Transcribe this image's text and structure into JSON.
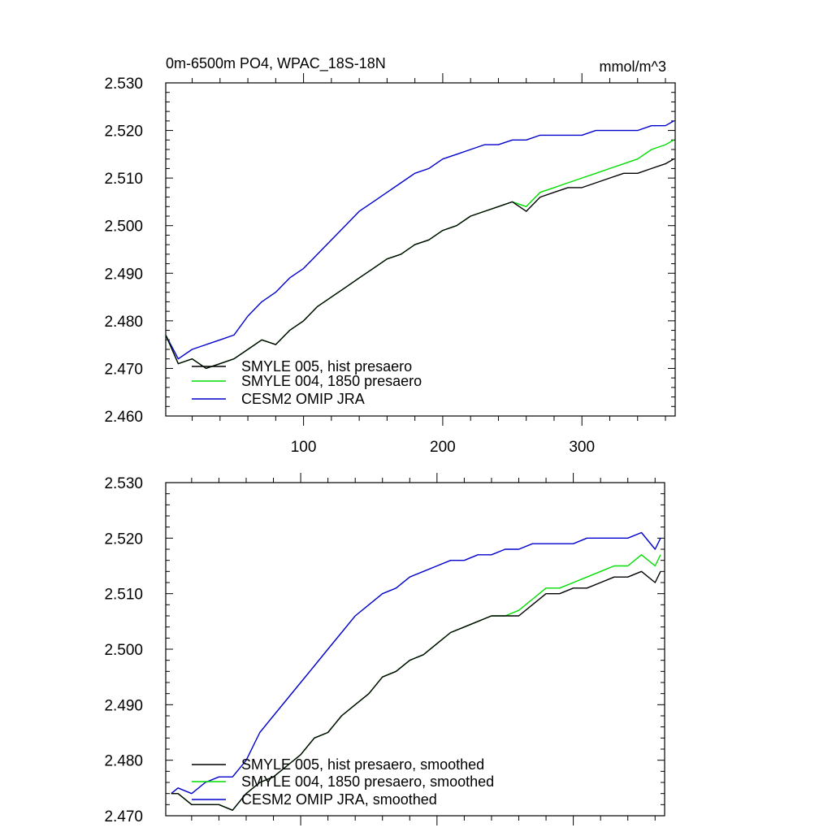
{
  "chart_data": [
    {
      "type": "line",
      "title": "0m-6500m PO4, WPAC_18S-18N",
      "units": "mmol/m^3",
      "xlim": [
        1,
        367
      ],
      "ylim": [
        2.46,
        2.53
      ],
      "yticks": [
        2.46,
        2.47,
        2.48,
        2.49,
        2.5,
        2.51,
        2.52,
        2.53
      ],
      "ytick_labels": [
        "2.460",
        "2.470",
        "2.480",
        "2.490",
        "2.500",
        "2.510",
        "2.520",
        "2.530"
      ],
      "xticks": [
        100,
        200,
        300
      ],
      "xtick_labels": [
        "100",
        "200",
        "300"
      ],
      "legend_position": "bottom-left",
      "series": [
        {
          "name": "SMYLE 005, hist presaero",
          "color": "#000000",
          "x": [
            1,
            10,
            20,
            30,
            40,
            50,
            60,
            70,
            80,
            90,
            100,
            110,
            120,
            130,
            140,
            150,
            160,
            170,
            180,
            190,
            200,
            210,
            220,
            230,
            240,
            250,
            260,
            270,
            280,
            290,
            300,
            310,
            320,
            330,
            340,
            350,
            360,
            366
          ],
          "y": [
            2.477,
            2.471,
            2.472,
            2.47,
            2.471,
            2.472,
            2.474,
            2.476,
            2.475,
            2.478,
            2.48,
            2.483,
            2.485,
            2.487,
            2.489,
            2.491,
            2.493,
            2.494,
            2.496,
            2.497,
            2.499,
            2.5,
            2.502,
            2.503,
            2.504,
            2.505,
            2.503,
            2.506,
            2.507,
            2.508,
            2.508,
            2.509,
            2.51,
            2.511,
            2.511,
            2.512,
            2.513,
            2.514
          ]
        },
        {
          "name": "SMYLE 004, 1850 presaero",
          "color": "#00dd00",
          "x": [
            1,
            10,
            20,
            30,
            40,
            50,
            60,
            70,
            80,
            90,
            100,
            110,
            120,
            130,
            140,
            150,
            160,
            170,
            180,
            190,
            200,
            210,
            220,
            230,
            240,
            250,
            260,
            270,
            280,
            290,
            300,
            310,
            320,
            330,
            340,
            350,
            360,
            366
          ],
          "y": [
            2.477,
            2.471,
            2.472,
            2.47,
            2.471,
            2.472,
            2.474,
            2.476,
            2.475,
            2.478,
            2.48,
            2.483,
            2.485,
            2.487,
            2.489,
            2.491,
            2.493,
            2.494,
            2.496,
            2.497,
            2.499,
            2.5,
            2.502,
            2.503,
            2.504,
            2.505,
            2.504,
            2.507,
            2.508,
            2.509,
            2.51,
            2.511,
            2.512,
            2.513,
            2.514,
            2.516,
            2.517,
            2.518
          ]
        },
        {
          "name": "CESM2 OMIP JRA",
          "color": "#0000cc",
          "x": [
            1,
            10,
            20,
            30,
            40,
            50,
            60,
            70,
            80,
            90,
            100,
            110,
            120,
            130,
            140,
            150,
            160,
            170,
            180,
            190,
            200,
            210,
            220,
            230,
            240,
            250,
            260,
            270,
            280,
            290,
            300,
            310,
            320,
            330,
            340,
            350,
            360,
            366
          ],
          "y": [
            2.477,
            2.472,
            2.474,
            2.475,
            2.476,
            2.477,
            2.481,
            2.484,
            2.486,
            2.489,
            2.491,
            2.494,
            2.497,
            2.5,
            2.503,
            2.505,
            2.507,
            2.509,
            2.511,
            2.512,
            2.514,
            2.515,
            2.516,
            2.517,
            2.517,
            2.518,
            2.518,
            2.519,
            2.519,
            2.519,
            2.519,
            2.52,
            2.52,
            2.52,
            2.52,
            2.521,
            2.521,
            2.522
          ]
        }
      ]
    },
    {
      "type": "line",
      "title": "",
      "units": "",
      "xlim": [
        1,
        367
      ],
      "ylim": [
        2.47,
        2.53
      ],
      "yticks": [
        2.47,
        2.48,
        2.49,
        2.5,
        2.51,
        2.52,
        2.53
      ],
      "ytick_labels": [
        "2.470",
        "2.480",
        "2.490",
        "2.500",
        "2.510",
        "2.520",
        "2.530"
      ],
      "xticks": [
        100,
        200,
        300
      ],
      "xtick_labels": [],
      "legend_position": "bottom-left",
      "series": [
        {
          "name": "SMYLE 005, hist presaero, smoothed",
          "color": "#000000",
          "x": [
            5,
            10,
            20,
            30,
            40,
            50,
            60,
            70,
            80,
            90,
            100,
            110,
            120,
            130,
            140,
            150,
            160,
            170,
            180,
            190,
            200,
            210,
            220,
            230,
            240,
            250,
            260,
            270,
            280,
            290,
            300,
            310,
            320,
            330,
            340,
            350,
            360,
            364
          ],
          "y": [
            2.474,
            2.474,
            2.472,
            2.472,
            2.472,
            2.471,
            2.474,
            2.476,
            2.477,
            2.479,
            2.481,
            2.484,
            2.485,
            2.488,
            2.49,
            2.492,
            2.495,
            2.496,
            2.498,
            2.499,
            2.501,
            2.503,
            2.504,
            2.505,
            2.506,
            2.506,
            2.506,
            2.508,
            2.51,
            2.51,
            2.511,
            2.511,
            2.512,
            2.513,
            2.513,
            2.514,
            2.512,
            2.514
          ]
        },
        {
          "name": "SMYLE 004, 1850 presaero, smoothed",
          "color": "#00dd00",
          "x": [
            5,
            10,
            20,
            30,
            40,
            50,
            60,
            70,
            80,
            90,
            100,
            110,
            120,
            130,
            140,
            150,
            160,
            170,
            180,
            190,
            200,
            210,
            220,
            230,
            240,
            250,
            260,
            270,
            280,
            290,
            300,
            310,
            320,
            330,
            340,
            350,
            360,
            364
          ],
          "y": [
            2.474,
            2.474,
            2.472,
            2.472,
            2.472,
            2.471,
            2.474,
            2.476,
            2.477,
            2.479,
            2.481,
            2.484,
            2.485,
            2.488,
            2.49,
            2.492,
            2.495,
            2.496,
            2.498,
            2.499,
            2.501,
            2.503,
            2.504,
            2.505,
            2.506,
            2.506,
            2.507,
            2.509,
            2.511,
            2.511,
            2.512,
            2.513,
            2.514,
            2.515,
            2.515,
            2.517,
            2.515,
            2.517
          ]
        },
        {
          "name": "CESM2 OMIP JRA, smoothed",
          "color": "#0000cc",
          "x": [
            5,
            10,
            20,
            30,
            40,
            50,
            60,
            70,
            80,
            90,
            100,
            110,
            120,
            130,
            140,
            150,
            160,
            170,
            180,
            190,
            200,
            210,
            220,
            230,
            240,
            250,
            260,
            270,
            280,
            290,
            300,
            310,
            320,
            330,
            340,
            350,
            360,
            364
          ],
          "y": [
            2.474,
            2.475,
            2.474,
            2.476,
            2.477,
            2.477,
            2.48,
            2.485,
            2.488,
            2.491,
            2.494,
            2.497,
            2.5,
            2.503,
            2.506,
            2.508,
            2.51,
            2.511,
            2.513,
            2.514,
            2.515,
            2.516,
            2.516,
            2.517,
            2.517,
            2.518,
            2.518,
            2.519,
            2.519,
            2.519,
            2.519,
            2.52,
            2.52,
            2.52,
            2.52,
            2.521,
            2.518,
            2.52
          ]
        }
      ]
    }
  ]
}
